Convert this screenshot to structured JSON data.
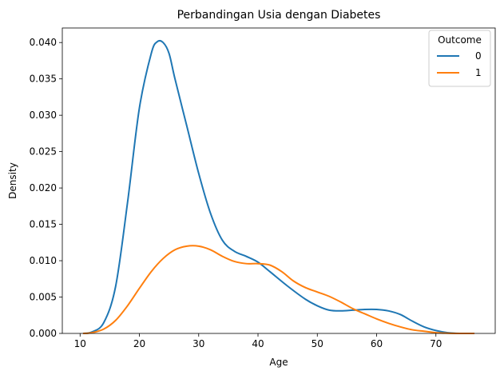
{
  "chart_data": {
    "type": "line",
    "title": "Perbandingan Usia dengan Diabetes",
    "xlabel": "Age",
    "ylabel": "Density",
    "xlim": [
      7,
      80
    ],
    "ylim": [
      0,
      0.042
    ],
    "x_ticks": [
      10,
      20,
      30,
      40,
      50,
      60,
      70
    ],
    "x_tick_labels": [
      "10",
      "20",
      "30",
      "40",
      "50",
      "60",
      "70"
    ],
    "y_ticks": [
      0,
      0.005,
      0.01,
      0.015,
      0.02,
      0.025,
      0.03,
      0.035,
      0.04
    ],
    "y_tick_labels": [
      "0.000",
      "0.005",
      "0.010",
      "0.015",
      "0.020",
      "0.025",
      "0.030",
      "0.035",
      "0.040"
    ],
    "grid": false,
    "legend": {
      "title": "Outcome",
      "placement": "top-right"
    },
    "series": [
      {
        "name": "0",
        "color": "#1f77b4",
        "x": [
          10.5,
          12,
          14,
          16,
          18,
          20,
          22,
          23,
          24,
          25,
          26,
          28,
          30,
          32,
          34,
          36,
          38,
          40,
          42,
          45,
          48,
          50,
          52,
          54,
          56,
          58,
          60,
          62,
          64,
          66,
          68,
          70,
          72,
          74,
          76.5
        ],
        "y": [
          0.0,
          0.0002,
          0.0015,
          0.0065,
          0.018,
          0.031,
          0.0385,
          0.0401,
          0.04,
          0.0385,
          0.035,
          0.0285,
          0.022,
          0.0165,
          0.0128,
          0.0113,
          0.0106,
          0.0098,
          0.0085,
          0.0065,
          0.0047,
          0.0038,
          0.0032,
          0.0031,
          0.0032,
          0.0033,
          0.0033,
          0.0031,
          0.0026,
          0.0017,
          0.0009,
          0.0004,
          0.0001,
          0.0,
          0.0
        ]
      },
      {
        "name": "1",
        "color": "#ff7f0e",
        "x": [
          10.5,
          12,
          14,
          16,
          18,
          20,
          22,
          24,
          26,
          28,
          30,
          32,
          34,
          36,
          38,
          40,
          42,
          44,
          46,
          48,
          50,
          52,
          54,
          56,
          58,
          60,
          62,
          64,
          66,
          68,
          70,
          72,
          74,
          76.5
        ],
        "y": [
          0.0,
          0.0001,
          0.0006,
          0.0018,
          0.0038,
          0.0062,
          0.0085,
          0.0103,
          0.0115,
          0.012,
          0.012,
          0.0115,
          0.0106,
          0.0099,
          0.0096,
          0.0096,
          0.0094,
          0.0085,
          0.0072,
          0.0063,
          0.0057,
          0.0051,
          0.0043,
          0.0034,
          0.0027,
          0.002,
          0.0014,
          0.0009,
          0.0005,
          0.0003,
          0.0001,
          3e-05,
          0.0,
          0.0
        ]
      }
    ]
  }
}
